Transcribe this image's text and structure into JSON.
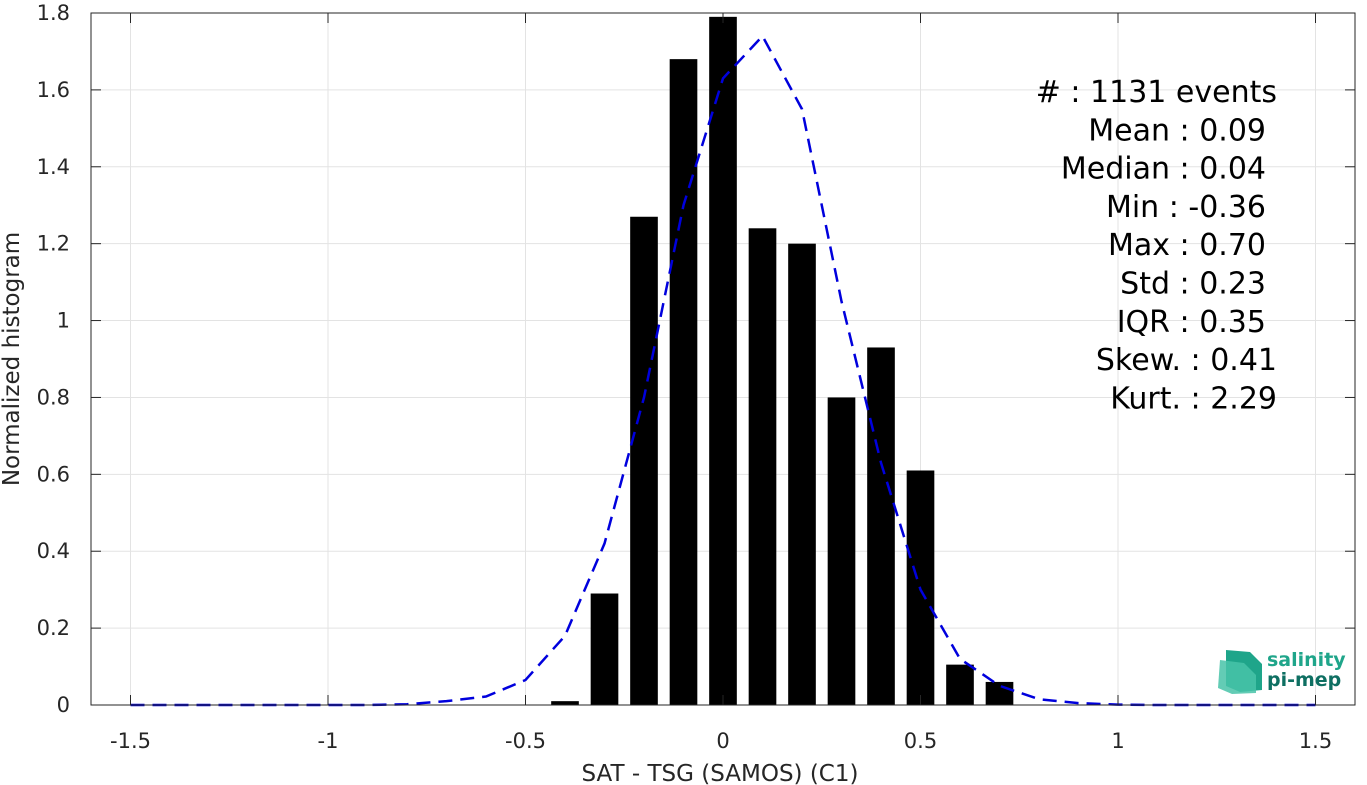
{
  "chart_data": {
    "type": "bar",
    "xlabel": "SAT - TSG (SAMOS) (C1)",
    "ylabel": "Normalized histogram",
    "xlim": [
      -1.6,
      1.6
    ],
    "ylim": [
      0,
      1.8
    ],
    "xticks": [
      -1.5,
      -1,
      -0.5,
      0,
      0.5,
      1,
      1.5
    ],
    "xtick_labels": [
      "-1.5",
      "-1",
      "-0.5",
      "0",
      "0.5",
      "1",
      "1.5"
    ],
    "yticks": [
      0,
      0.2,
      0.4,
      0.6,
      0.8,
      1,
      1.2,
      1.4,
      1.6,
      1.8
    ],
    "ytick_labels": [
      "0",
      "0.2",
      "0.4",
      "0.6",
      "0.8",
      "1",
      "1.2",
      "1.4",
      "1.6",
      "1.8"
    ],
    "grid": true,
    "bars": {
      "color": "#000000",
      "x": [
        -0.4,
        -0.3,
        -0.2,
        -0.1,
        0.0,
        0.1,
        0.2,
        0.3,
        0.4,
        0.5,
        0.6,
        0.7
      ],
      "values": [
        0.01,
        0.29,
        1.27,
        1.68,
        1.79,
        1.24,
        1.2,
        0.8,
        0.93,
        0.61,
        0.105,
        0.06
      ]
    },
    "fit_curve": {
      "style": "dashed",
      "color": "#0000dd",
      "x": [
        -1.5,
        -1.4,
        -1.3,
        -1.2,
        -1.1,
        -1.0,
        -0.9,
        -0.8,
        -0.7,
        -0.6,
        -0.5,
        -0.4,
        -0.3,
        -0.2,
        -0.1,
        0.0,
        0.1,
        0.2,
        0.3,
        0.4,
        0.5,
        0.6,
        0.7,
        0.8,
        0.9,
        1.0,
        1.1,
        1.2,
        1.3,
        1.4,
        1.5
      ],
      "y": [
        0,
        0,
        0,
        0,
        0,
        0,
        0,
        0.002,
        0.01,
        0.022,
        0.065,
        0.18,
        0.42,
        0.8,
        1.3,
        1.63,
        1.74,
        1.55,
        1.05,
        0.63,
        0.3,
        0.12,
        0.05,
        0.015,
        0.005,
        0.001,
        0,
        0,
        0,
        0,
        0
      ]
    },
    "stats": [
      {
        "label": "#",
        "value": ": 1131 events"
      },
      {
        "label": "Mean",
        "value": ": 0.09"
      },
      {
        "label": "Median",
        "value": ": 0.04"
      },
      {
        "label": "Min",
        "value": ": -0.36"
      },
      {
        "label": "Max",
        "value": ": 0.70"
      },
      {
        "label": "Std",
        "value": ": 0.23"
      },
      {
        "label": "IQR",
        "value": ": 0.35"
      },
      {
        "label": "Skew.",
        "value": ": 0.41"
      },
      {
        "label": "Kurt.",
        "value": ": 2.29"
      }
    ]
  },
  "logo": {
    "line1": "salinity",
    "line2": "pi-mep",
    "color_top": "#1fa58a",
    "color_bottom": "#0e6f62"
  }
}
